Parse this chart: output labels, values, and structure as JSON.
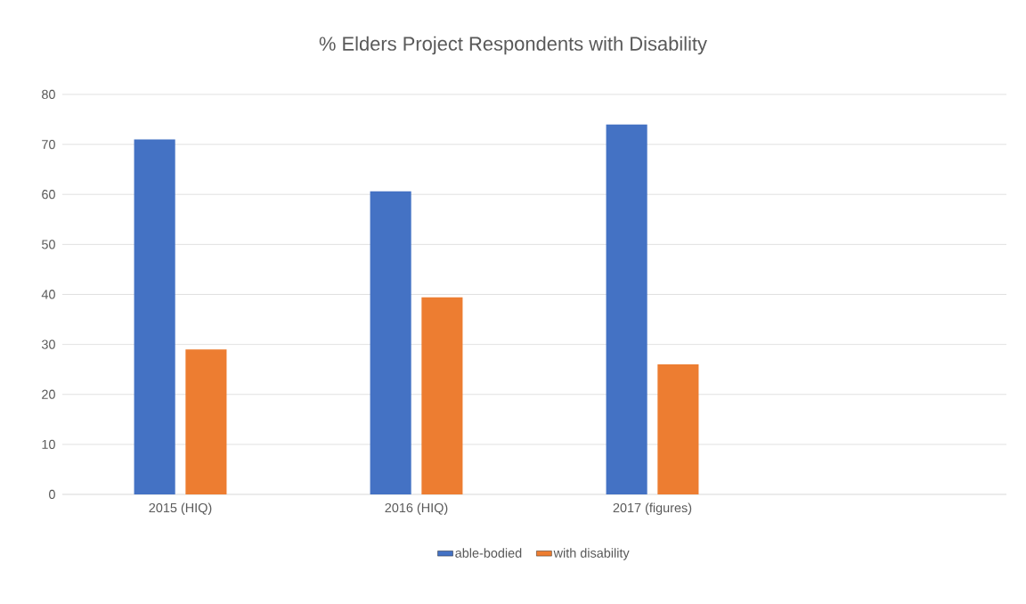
{
  "chart_data": {
    "type": "bar",
    "title": "% Elders Project Respondents with Disability",
    "categories": [
      "2015 (HIQ)",
      "2016 (HIQ)",
      "2017 (figures)",
      null
    ],
    "series": [
      {
        "name": "able-bodied",
        "color": "#4472c4",
        "values": [
          71,
          60.6,
          74,
          null
        ]
      },
      {
        "name": "with disability",
        "color": "#ed7d31",
        "values": [
          29,
          39.4,
          26,
          null
        ]
      }
    ],
    "ylim": [
      0,
      80
    ],
    "yticks": [
      0,
      10,
      20,
      30,
      40,
      50,
      60,
      70,
      80
    ],
    "grid": "y",
    "legend": "bottom"
  }
}
